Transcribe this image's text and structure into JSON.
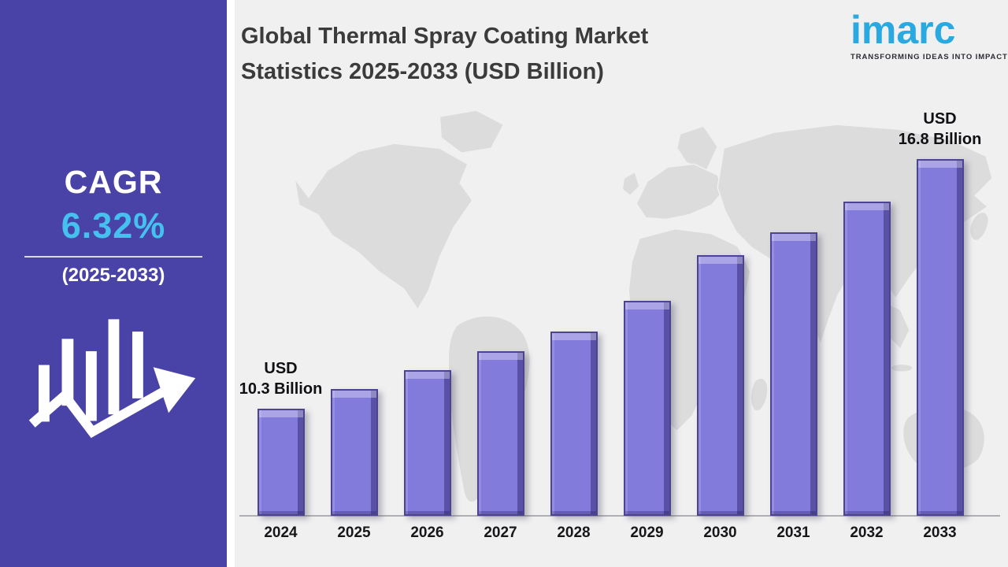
{
  "sidebar": {
    "bg_color": "#4A43A7",
    "cagr_label": "CAGR",
    "cagr_value": "6.32%",
    "cagr_value_color": "#45C1F0",
    "period": "(2025-2033)"
  },
  "header": {
    "title_line1": "Global Thermal Spray Coating Market",
    "title_line2": "Statistics 2025-2033 (USD Billion)",
    "logo": {
      "wordmark": "imarc",
      "tagline": "TRANSFORMING IDEAS INTO IMPACT",
      "brand_color": "#2AA9E1"
    }
  },
  "chart_data": {
    "type": "bar",
    "title": "Global Thermal Spray Coating Market Statistics 2025-2033 (USD Billion)",
    "unit": "USD Billion",
    "categories": [
      "2024",
      "2025",
      "2026",
      "2027",
      "2028",
      "2029",
      "2030",
      "2031",
      "2032",
      "2033"
    ],
    "values": [
      10.3,
      10.8,
      11.3,
      11.8,
      12.3,
      13.1,
      14.3,
      14.9,
      15.7,
      16.8
    ],
    "labeled_points": [
      {
        "category": "2024",
        "label_line1": "USD",
        "label_line2": "10.3 Billion"
      },
      {
        "category": "2033",
        "label_line1": "USD",
        "label_line2": "16.8 Billion"
      }
    ],
    "ylim": [
      7.5,
      17.6
    ],
    "grid": false,
    "legend": false,
    "xlabel": "",
    "ylabel": "",
    "bar_color": "#837BDC",
    "bar_edge_color": "#4C4391",
    "background": "world-map-silhouette"
  }
}
